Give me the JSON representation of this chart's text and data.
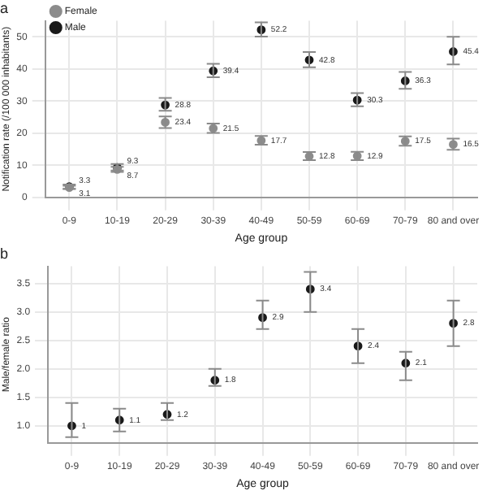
{
  "chart_data": [
    {
      "type": "scatter",
      "title": "a",
      "xlabel": "Age group",
      "ylabel": "Notification rate (/100 000 inhabitants)",
      "categories": [
        "0-9",
        "10-19",
        "20-29",
        "30-39",
        "40-49",
        "50-59",
        "60-69",
        "70-79",
        "80 and over"
      ],
      "series": [
        {
          "name": "Female",
          "color": "#8c8c8c",
          "values": [
            3.1,
            8.7,
            23.4,
            21.5,
            17.7,
            12.8,
            12.9,
            17.5,
            16.5
          ],
          "errors": [
            [
              2.6,
              3.6
            ],
            [
              7.9,
              9.5
            ],
            [
              21.6,
              25.2
            ],
            [
              20.1,
              23
            ],
            [
              16.4,
              19.1
            ],
            [
              11.6,
              14.1
            ],
            [
              11.6,
              14.2
            ],
            [
              16.1,
              19
            ],
            [
              14.8,
              18.3
            ]
          ]
        },
        {
          "name": "Male",
          "color": "#1a1a1a",
          "values": [
            3.3,
            9.3,
            28.8,
            39.4,
            52.2,
            42.8,
            30.3,
            36.3,
            45.4
          ],
          "errors": [
            [
              2.7,
              4
            ],
            [
              8.4,
              10.4
            ],
            [
              27,
              31
            ],
            [
              37.4,
              41.6
            ],
            [
              50.1,
              54.5
            ],
            [
              40.5,
              45.3
            ],
            [
              28.4,
              32.5
            ],
            [
              33.8,
              39.1
            ],
            [
              41.4,
              50
            ]
          ]
        }
      ],
      "ylim": [
        0,
        55
      ],
      "yticks": [
        0,
        10,
        20,
        30,
        40,
        50
      ],
      "grid": true,
      "legend": "top left",
      "marker": "circle",
      "data_labels": true
    },
    {
      "type": "scatter",
      "title": "b",
      "xlabel": "Age group",
      "ylabel": "Male/female ratio",
      "categories": [
        "0-9",
        "10-19",
        "20-29",
        "30-39",
        "40-49",
        "50-59",
        "60-69",
        "70-79",
        "80 and over"
      ],
      "series": [
        {
          "color": "#1a1a1a",
          "values": [
            1,
            1.1,
            1.2,
            1.8,
            2.9,
            3.4,
            2.4,
            2.1,
            2.8
          ],
          "errors": [
            [
              0.8,
              1.4
            ],
            [
              0.9,
              1.3
            ],
            [
              1.1,
              1.4
            ],
            [
              1.7,
              2
            ],
            [
              2.7,
              3.2
            ],
            [
              3,
              3.7
            ],
            [
              2.1,
              2.7
            ],
            [
              1.8,
              2.3
            ],
            [
              2.4,
              3.2
            ]
          ]
        }
      ],
      "ylim": [
        0.7,
        3.8
      ],
      "yticks": [
        {
          "value": 1,
          "label": "1.0"
        },
        {
          "value": 1.5,
          "label": "1.5"
        },
        {
          "value": 2,
          "label": "2.0"
        },
        {
          "value": 2.5,
          "label": "2.5"
        },
        {
          "value": 3,
          "label": "3.0"
        },
        {
          "value": 3.5,
          "label": "3.5"
        }
      ],
      "grid": true,
      "marker": "circle",
      "data_labels": true
    }
  ]
}
